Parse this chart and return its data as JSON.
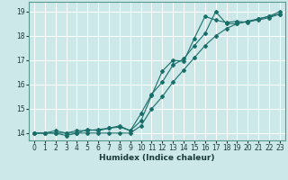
{
  "xlabel": "Humidex (Indice chaleur)",
  "bg_color": "#cce8e8",
  "grid_color": "#ffffff",
  "line_color": "#1a6e6a",
  "xlim": [
    -0.5,
    23.5
  ],
  "ylim": [
    13.7,
    19.4
  ],
  "xticks": [
    0,
    1,
    2,
    3,
    4,
    5,
    6,
    7,
    8,
    9,
    10,
    11,
    12,
    13,
    14,
    15,
    16,
    17,
    18,
    19,
    20,
    21,
    22,
    23
  ],
  "yticks": [
    14,
    15,
    16,
    17,
    18,
    19
  ],
  "series1_x": [
    0,
    1,
    2,
    3,
    4,
    5,
    6,
    7,
    8,
    9,
    10,
    11,
    12,
    13,
    14,
    15,
    16,
    17,
    18,
    19,
    20,
    21,
    22,
    23
  ],
  "series1_y": [
    14.0,
    14.0,
    14.1,
    14.0,
    14.1,
    14.1,
    14.15,
    14.2,
    14.25,
    14.1,
    14.8,
    15.6,
    16.1,
    16.8,
    17.05,
    17.6,
    18.1,
    19.0,
    18.5,
    18.5,
    18.6,
    18.65,
    18.75,
    18.9
  ],
  "series2_x": [
    0,
    1,
    2,
    3,
    4,
    5,
    6,
    7,
    8,
    9,
    10,
    11,
    12,
    13,
    14,
    15,
    16,
    17,
    18,
    19,
    20,
    21,
    22,
    23
  ],
  "series2_y": [
    14.0,
    14.0,
    14.0,
    13.9,
    14.0,
    14.15,
    14.1,
    14.2,
    14.3,
    14.1,
    14.5,
    15.55,
    16.55,
    17.0,
    16.95,
    17.9,
    18.8,
    18.65,
    18.55,
    18.6,
    18.55,
    18.7,
    18.8,
    19.0
  ],
  "series3_x": [
    0,
    1,
    2,
    3,
    4,
    5,
    6,
    7,
    8,
    9,
    10,
    11,
    12,
    13,
    14,
    15,
    16,
    17,
    18,
    19,
    20,
    21,
    22,
    23
  ],
  "series3_y": [
    14.0,
    14.0,
    14.0,
    14.0,
    14.0,
    14.0,
    14.0,
    14.0,
    14.0,
    14.0,
    14.3,
    15.0,
    15.5,
    16.1,
    16.6,
    17.1,
    17.6,
    18.0,
    18.3,
    18.5,
    18.6,
    18.7,
    18.8,
    18.9
  ]
}
